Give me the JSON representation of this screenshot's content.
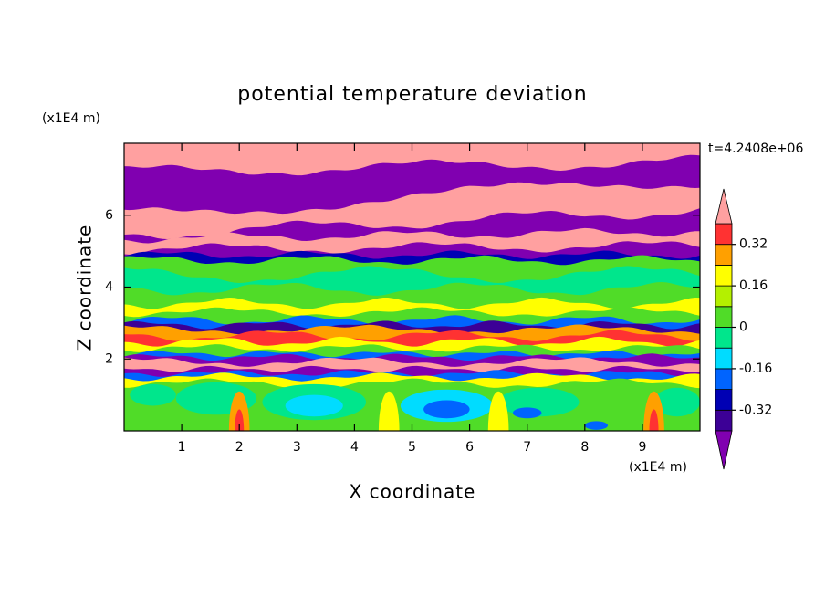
{
  "chart_data": {
    "type": "contourf",
    "title": "potential temperature deviation",
    "xlabel": "X coordinate",
    "ylabel": "Z coordinate",
    "x_unit": "(x1E4 m)",
    "y_unit": "(x1E4 m)",
    "annotation": "t=4.2408e+06",
    "xlim": [
      0,
      10
    ],
    "xticks": [
      1,
      2,
      3,
      4,
      5,
      6,
      7,
      8,
      9
    ],
    "ylim": [
      0,
      8
    ],
    "yticks": [
      2,
      4,
      6
    ],
    "levels": [
      -0.4,
      -0.32,
      -0.24,
      -0.16,
      -0.08,
      0,
      0.08,
      0.16,
      0.24,
      0.32,
      0.4
    ],
    "colors": [
      "#8000b0",
      "#3c0096",
      "#0000b4",
      "#0064ff",
      "#00dcff",
      "#00e68c",
      "#50dc28",
      "#b4f000",
      "#ffff00",
      "#ffa000",
      "#ff3232",
      "#ffa0a0"
    ],
    "colorbar_ticks": [
      -0.32,
      -0.16,
      0,
      0.16,
      0.32
    ]
  }
}
